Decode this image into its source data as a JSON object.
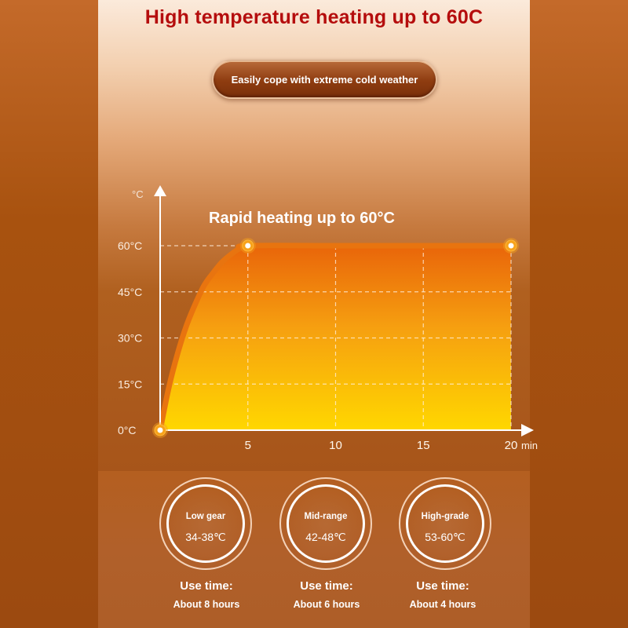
{
  "title": "High temperature heating up to 60C",
  "pill_text": "Easily cope with extreme cold weather",
  "chart_data": {
    "type": "area",
    "annotation": "Rapid heating up to 60°C",
    "y_unit_label": "°C",
    "x_unit_label": "min",
    "x_ticks": [
      "5",
      "10",
      "15",
      "20"
    ],
    "y_ticks": [
      "0°C",
      "15°C",
      "30°C",
      "45°C",
      "60°C"
    ],
    "xlim": [
      0,
      20
    ],
    "ylim": [
      0,
      60
    ],
    "series": [
      {
        "x": [
          0,
          0.5,
          1,
          1.5,
          2,
          2.5,
          3,
          3.5,
          4,
          4.5,
          5,
          10,
          15,
          20
        ],
        "y": [
          0,
          14,
          25,
          34,
          41,
          47,
          51,
          54.5,
          57,
          59,
          60,
          60,
          60,
          60
        ]
      }
    ],
    "highlight_points": [
      {
        "x": 0,
        "y": 0
      },
      {
        "x": 5,
        "y": 60
      },
      {
        "x": 20,
        "y": 60
      }
    ],
    "grid": true
  },
  "gears": [
    {
      "name": "Low gear",
      "range": "34-38℃",
      "use_label": "Use time:",
      "use_value": "About 8 hours"
    },
    {
      "name": "Mid-range",
      "range": "42-48℃",
      "use_label": "Use time:",
      "use_value": "About 6 hours"
    },
    {
      "name": "High-grade",
      "range": "53-60℃",
      "use_label": "Use time:",
      "use_value": "About 4 hours"
    }
  ],
  "colors": {
    "title": "#b50d0d",
    "curve": "#e8740f",
    "fill_top": "#e9650a",
    "fill_bottom": "#ffd400",
    "point": "#f7a21b"
  }
}
